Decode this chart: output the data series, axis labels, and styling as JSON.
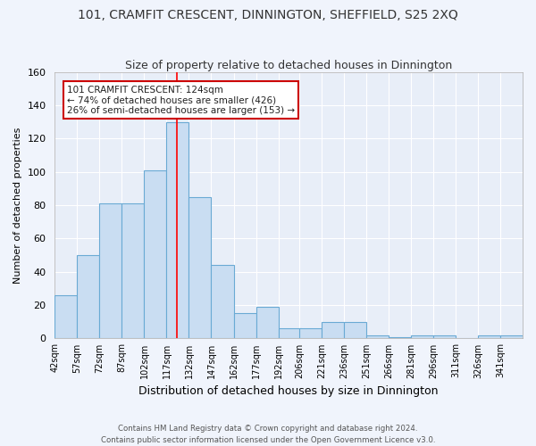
{
  "title": "101, CRAMFIT CRESCENT, DINNINGTON, SHEFFIELD, S25 2XQ",
  "subtitle": "Size of property relative to detached houses in Dinnington",
  "xlabel": "Distribution of detached houses by size in Dinnington",
  "ylabel": "Number of detached properties",
  "bin_labels": [
    "42sqm",
    "57sqm",
    "72sqm",
    "87sqm",
    "102sqm",
    "117sqm",
    "132sqm",
    "147sqm",
    "162sqm",
    "177sqm",
    "192sqm",
    "206sqm",
    "221sqm",
    "236sqm",
    "251sqm",
    "266sqm",
    "281sqm",
    "296sqm",
    "311sqm",
    "326sqm",
    "341sqm"
  ],
  "bin_edges": [
    42,
    57,
    72,
    87,
    102,
    117,
    132,
    147,
    162,
    177,
    192,
    206,
    221,
    236,
    251,
    266,
    281,
    296,
    311,
    326,
    341
  ],
  "counts": [
    26,
    50,
    81,
    81,
    101,
    130,
    85,
    44,
    15,
    19,
    6,
    6,
    10,
    10,
    2,
    1,
    2,
    2,
    0,
    2,
    2
  ],
  "bar_color": "#c9ddf2",
  "bar_edge_color": "#6aaad4",
  "bg_color": "#e8eef8",
  "grid_color": "#ffffff",
  "fig_bg_color": "#f0f4fc",
  "red_line_x": 124,
  "annotation_line1": "101 CRAMFIT CRESCENT: 124sqm",
  "annotation_line2": "← 74% of detached houses are smaller (426)",
  "annotation_line3": "26% of semi-detached houses are larger (153) →",
  "annotation_box_color": "#ffffff",
  "annotation_box_edge": "#cc0000",
  "footer1": "Contains HM Land Registry data © Crown copyright and database right 2024.",
  "footer2": "Contains public sector information licensed under the Open Government Licence v3.0.",
  "ylim": [
    0,
    160
  ],
  "yticks": [
    0,
    20,
    40,
    60,
    80,
    100,
    120,
    140,
    160
  ],
  "title_fontsize": 10,
  "subtitle_fontsize": 9,
  "ylabel_fontsize": 8,
  "xlabel_fontsize": 9
}
